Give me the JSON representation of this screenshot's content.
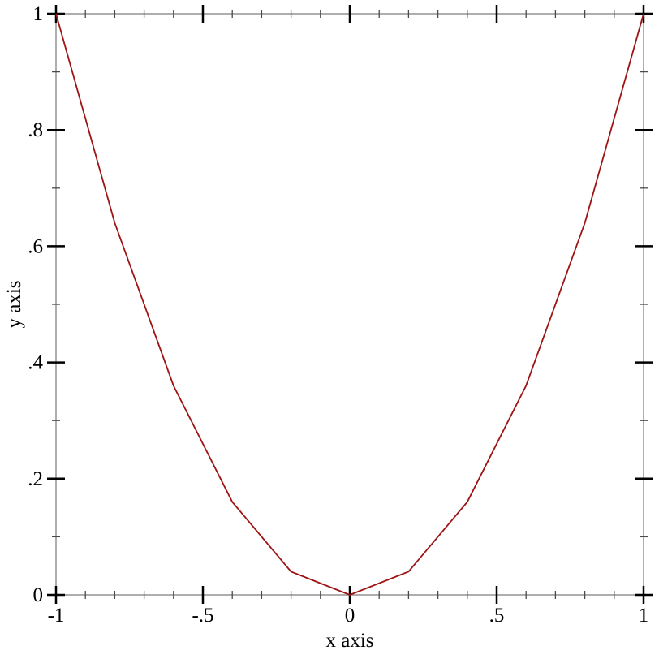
{
  "chart_data": {
    "type": "line",
    "title": "",
    "xlabel": "x axis",
    "ylabel": "y axis",
    "xlim": [
      -1,
      1
    ],
    "ylim": [
      0,
      1
    ],
    "grid": false,
    "legend": "none",
    "series": [
      {
        "x": [
          -1.0,
          -0.8,
          -0.6,
          -0.4,
          -0.2,
          0.0,
          0.2,
          0.4,
          0.6,
          0.8,
          1.0
        ],
        "y": [
          1.0,
          0.64,
          0.36,
          0.16,
          0.04,
          0.0,
          0.04,
          0.16,
          0.36,
          0.64,
          1.0
        ]
      }
    ],
    "x_ticks": {
      "major": [
        -1,
        -0.5,
        0,
        0.5,
        1
      ],
      "major_labels": [
        "-1",
        "-.5",
        "0",
        ".5",
        "1"
      ],
      "minor_step": 0.1
    },
    "y_ticks": {
      "major": [
        0,
        0.2,
        0.4,
        0.6,
        0.8,
        1
      ],
      "major_labels": [
        "0",
        ".2",
        ".4",
        ".6",
        ".8",
        "1"
      ],
      "minor_step": 0.1
    },
    "colors": {
      "line": "#9e1414",
      "frame": "#8b8b8b",
      "major_tick": "#000000",
      "minor_tick": "#4a4a4a",
      "text": "#000000",
      "background": "#ffffff"
    }
  }
}
